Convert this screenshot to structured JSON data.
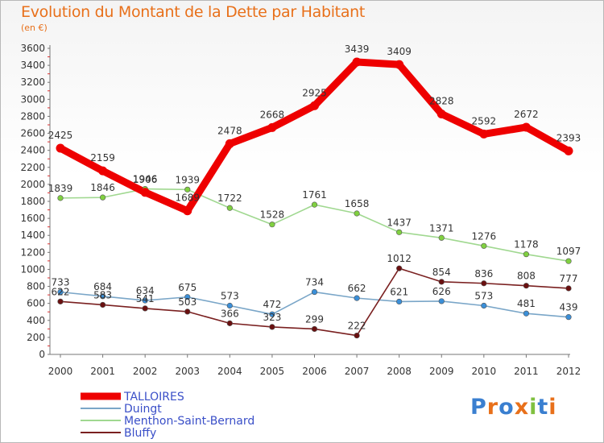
{
  "header": {
    "title": "Evolution du Montant de la Dette par Habitant",
    "subtitle": "(en €)"
  },
  "logo": {
    "text": "Proxiti",
    "colors": [
      "#3a7fd0",
      "#e8701a",
      "#3a7fd0",
      "#e8701a",
      "#80c040",
      "#3a7fd0",
      "#e8701a"
    ]
  },
  "chart_data": {
    "type": "line",
    "title": "Evolution du Montant de la Dette par Habitant",
    "subtitle": "(en €)",
    "xlabel": "",
    "ylabel": "",
    "x": [
      "2000",
      "2001",
      "2002",
      "2003",
      "2004",
      "2005",
      "2006",
      "2007",
      "2008",
      "2009",
      "2010",
      "2011",
      "2012"
    ],
    "ylim": [
      0,
      3600
    ],
    "yticks": [
      0,
      200,
      400,
      600,
      800,
      1000,
      1200,
      1400,
      1600,
      1800,
      2000,
      2200,
      2400,
      2600,
      2800,
      3000,
      3200,
      3400,
      3600
    ],
    "grid": false,
    "legend_position": "bottom-left",
    "series": [
      {
        "name": "TALLOIRES",
        "color": "#ee0000",
        "marker": "#ee0000",
        "values": [
          2425,
          2159,
          1906,
          1689,
          2478,
          2668,
          2925,
          3439,
          3409,
          2828,
          2592,
          2672,
          2393
        ]
      },
      {
        "name": "Duingt",
        "color": "#7aa6c8",
        "marker": "#3b8fd8",
        "values": [
          733,
          684,
          634,
          675,
          573,
          472,
          734,
          662,
          621,
          626,
          573,
          481,
          439
        ]
      },
      {
        "name": "Menthon-Saint-Bernard",
        "color": "#a0d890",
        "marker": "#80d040",
        "values": [
          1839,
          1846,
          1946,
          1939,
          1722,
          1528,
          1761,
          1658,
          1437,
          1371,
          1276,
          1178,
          1097
        ]
      },
      {
        "name": "Bluffy",
        "color": "#7a2020",
        "marker": "#6a1010",
        "values": [
          622,
          583,
          541,
          503,
          366,
          323,
          299,
          222,
          1012,
          854,
          836,
          808,
          777
        ]
      }
    ]
  }
}
